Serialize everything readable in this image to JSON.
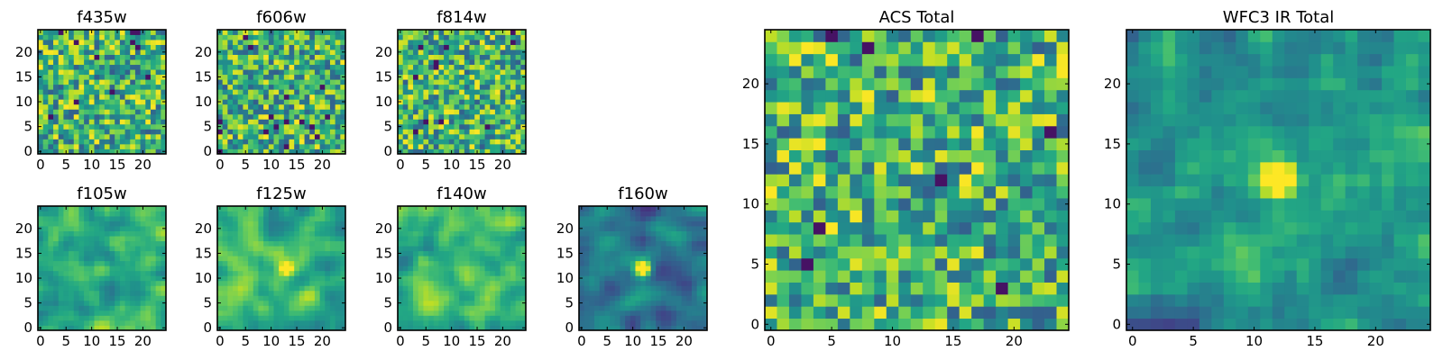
{
  "chart_data": [
    {
      "type": "heatmap",
      "title": "f435w",
      "xticks": [
        0,
        5,
        10,
        15,
        20
      ],
      "yticks": [
        0,
        5,
        10,
        15,
        20
      ],
      "grid": [
        25,
        25
      ],
      "seed": 11,
      "mode": "noise",
      "colormap": "viridis"
    },
    {
      "type": "heatmap",
      "title": "f606w",
      "xticks": [
        0,
        5,
        10,
        15,
        20
      ],
      "yticks": [
        0,
        5,
        10,
        15,
        20
      ],
      "grid": [
        25,
        25
      ],
      "seed": 23,
      "mode": "noise",
      "colormap": "viridis"
    },
    {
      "type": "heatmap",
      "title": "f814w",
      "xticks": [
        0,
        5,
        10,
        15,
        20
      ],
      "yticks": [
        0,
        5,
        10,
        15,
        20
      ],
      "grid": [
        25,
        25
      ],
      "seed": 37,
      "mode": "noise",
      "colormap": "viridis"
    },
    {
      "type": "heatmap",
      "title": "f105w",
      "xticks": [
        0,
        5,
        10,
        15,
        20
      ],
      "yticks": [
        0,
        5,
        10,
        15,
        20
      ],
      "grid": [
        25,
        25
      ],
      "seed": 41,
      "mode": "smooth",
      "source": {
        "x": 12,
        "y": 12,
        "strength": 0.1
      },
      "colormap": "viridis"
    },
    {
      "type": "heatmap",
      "title": "f125w",
      "xticks": [
        0,
        5,
        10,
        15,
        20
      ],
      "yticks": [
        0,
        5,
        10,
        15,
        20
      ],
      "grid": [
        25,
        25
      ],
      "seed": 53,
      "mode": "smooth",
      "source": {
        "x": 13,
        "y": 12,
        "strength": 0.55
      },
      "colormap": "viridis"
    },
    {
      "type": "heatmap",
      "title": "f140w",
      "xticks": [
        0,
        5,
        10,
        15,
        20
      ],
      "yticks": [
        0,
        5,
        10,
        15,
        20
      ],
      "grid": [
        25,
        25
      ],
      "seed": 67,
      "mode": "smooth",
      "source": {
        "x": 4,
        "y": 14,
        "strength": 0.2
      },
      "colormap": "viridis"
    },
    {
      "type": "heatmap",
      "title": "f160w",
      "xticks": [
        0,
        5,
        10,
        15,
        20
      ],
      "yticks": [
        0,
        5,
        10,
        15,
        20
      ],
      "grid": [
        25,
        25
      ],
      "seed": 71,
      "mode": "dark",
      "source": {
        "x": 12,
        "y": 12,
        "strength": 0.9
      },
      "colormap": "viridis"
    },
    {
      "type": "heatmap",
      "title": "ACS Total",
      "xticks": [
        0,
        5,
        10,
        15,
        20
      ],
      "yticks": [
        0,
        5,
        10,
        15,
        20
      ],
      "grid": [
        25,
        25
      ],
      "seed": 83,
      "mode": "noise",
      "colormap": "viridis"
    },
    {
      "type": "heatmap",
      "title": "WFC3 IR Total",
      "xticks": [
        0,
        5,
        10,
        15,
        20
      ],
      "yticks": [
        0,
        5,
        10,
        15,
        20
      ],
      "grid": [
        25,
        25
      ],
      "seed": 97,
      "mode": "ir",
      "source": {
        "x": 12,
        "y": 12,
        "strength": 0.9
      },
      "colormap": "viridis"
    }
  ],
  "colors": {
    "dark": "#440154",
    "mid": "#21908d",
    "light": "#5ec962",
    "bright": "#fde725"
  }
}
